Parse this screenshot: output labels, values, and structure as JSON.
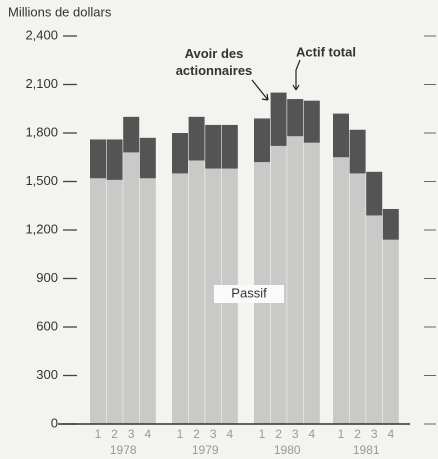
{
  "chart_data": {
    "type": "stacked-bar",
    "y_axis_label": "Millions de dollars",
    "categories": [
      "1",
      "2",
      "3",
      "4",
      "1",
      "2",
      "3",
      "4",
      "1",
      "2",
      "3",
      "4",
      "1",
      "2",
      "3",
      "4"
    ],
    "group_labels": [
      "1978",
      "1979",
      "1980",
      "1981"
    ],
    "series": [
      {
        "name": "Passif",
        "color": "#c9c9c7",
        "values": [
          1520,
          1510,
          1680,
          1520,
          1550,
          1630,
          1580,
          1580,
          1620,
          1720,
          1780,
          1740,
          1650,
          1550,
          1290,
          1140
        ]
      },
      {
        "name": "Avoir des actionnaires",
        "color": "#545454",
        "values": [
          240,
          250,
          220,
          250,
          250,
          270,
          270,
          270,
          270,
          330,
          230,
          260,
          270,
          270,
          270,
          190
        ]
      }
    ],
    "annotation": "Actif total",
    "ylim": [
      0,
      2400
    ],
    "yticks": [
      0,
      300,
      600,
      900,
      {
        "value": 1200,
        "label": "1,200"
      },
      {
        "value": 1500,
        "label": "1,500"
      },
      {
        "value": 1800,
        "label": "1,800"
      },
      {
        "value": 2100,
        "label": "2,100"
      },
      {
        "value": 2400,
        "label": "2,400"
      }
    ]
  }
}
